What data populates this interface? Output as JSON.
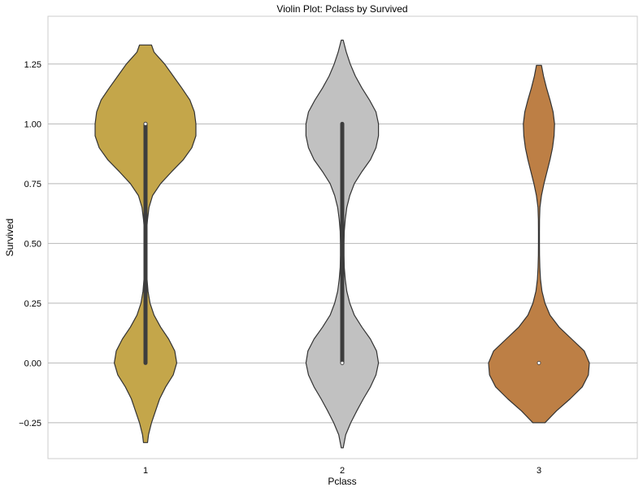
{
  "chart_data": {
    "type": "violin",
    "title": "Violin Plot: Pclass by Survived",
    "xlabel": "Pclass",
    "ylabel": "Survived",
    "categories": [
      "1",
      "2",
      "3"
    ],
    "ylim": [
      -0.4,
      1.45
    ],
    "yticks": [
      -0.25,
      0.0,
      0.25,
      0.5,
      0.75,
      1.0,
      1.25
    ],
    "ytick_labels": [
      "−0.25",
      "0.00",
      "0.25",
      "0.50",
      "0.75",
      "1.00",
      "1.25"
    ],
    "grid": true,
    "colors": [
      "#c4a64a",
      "#c1c1c1",
      "#bd7f45"
    ],
    "violins": [
      {
        "category": "1",
        "color": "#c4a64a",
        "profile": [
          [
            -0.333,
            0.04
          ],
          [
            -0.3,
            0.06
          ],
          [
            -0.25,
            0.12
          ],
          [
            -0.2,
            0.2
          ],
          [
            -0.15,
            0.28
          ],
          [
            -0.1,
            0.4
          ],
          [
            -0.05,
            0.55
          ],
          [
            0.0,
            0.62
          ],
          [
            0.05,
            0.58
          ],
          [
            0.1,
            0.46
          ],
          [
            0.15,
            0.3
          ],
          [
            0.2,
            0.17
          ],
          [
            0.25,
            0.09
          ],
          [
            0.3,
            0.05
          ],
          [
            0.35,
            0.03
          ],
          [
            0.4,
            0.02
          ],
          [
            0.45,
            0.015
          ],
          [
            0.5,
            0.015
          ],
          [
            0.55,
            0.02
          ],
          [
            0.6,
            0.04
          ],
          [
            0.65,
            0.07
          ],
          [
            0.7,
            0.14
          ],
          [
            0.75,
            0.3
          ],
          [
            0.8,
            0.52
          ],
          [
            0.85,
            0.75
          ],
          [
            0.9,
            0.92
          ],
          [
            0.95,
            1.0
          ],
          [
            1.0,
            1.0
          ],
          [
            1.05,
            0.97
          ],
          [
            1.1,
            0.88
          ],
          [
            1.15,
            0.72
          ],
          [
            1.2,
            0.55
          ],
          [
            1.25,
            0.38
          ],
          [
            1.3,
            0.17
          ],
          [
            1.33,
            0.12
          ]
        ],
        "box_range": [
          0.0,
          1.0
        ],
        "median": 1.0
      },
      {
        "category": "2",
        "color": "#c1c1c1",
        "profile": [
          [
            -0.355,
            0.02
          ],
          [
            -0.3,
            0.07
          ],
          [
            -0.25,
            0.17
          ],
          [
            -0.2,
            0.29
          ],
          [
            -0.15,
            0.42
          ],
          [
            -0.1,
            0.56
          ],
          [
            -0.05,
            0.67
          ],
          [
            0.0,
            0.72
          ],
          [
            0.05,
            0.68
          ],
          [
            0.1,
            0.56
          ],
          [
            0.15,
            0.39
          ],
          [
            0.2,
            0.24
          ],
          [
            0.25,
            0.15
          ],
          [
            0.3,
            0.09
          ],
          [
            0.35,
            0.06
          ],
          [
            0.4,
            0.04
          ],
          [
            0.45,
            0.035
          ],
          [
            0.5,
            0.035
          ],
          [
            0.55,
            0.04
          ],
          [
            0.6,
            0.06
          ],
          [
            0.65,
            0.09
          ],
          [
            0.7,
            0.15
          ],
          [
            0.75,
            0.24
          ],
          [
            0.8,
            0.39
          ],
          [
            0.85,
            0.56
          ],
          [
            0.9,
            0.67
          ],
          [
            0.95,
            0.72
          ],
          [
            1.0,
            0.72
          ],
          [
            1.05,
            0.67
          ],
          [
            1.1,
            0.54
          ],
          [
            1.15,
            0.39
          ],
          [
            1.2,
            0.26
          ],
          [
            1.25,
            0.16
          ],
          [
            1.3,
            0.08
          ],
          [
            1.35,
            0.02
          ]
        ],
        "box_range": [
          0.0,
          1.0
        ],
        "median": 0.0
      },
      {
        "category": "3",
        "color": "#bd7f45",
        "profile": [
          [
            -0.25,
            0.12
          ],
          [
            -0.2,
            0.35
          ],
          [
            -0.15,
            0.62
          ],
          [
            -0.1,
            0.86
          ],
          [
            -0.05,
            0.98
          ],
          [
            0.0,
            1.0
          ],
          [
            0.05,
            0.9
          ],
          [
            0.1,
            0.65
          ],
          [
            0.15,
            0.4
          ],
          [
            0.2,
            0.22
          ],
          [
            0.25,
            0.12
          ],
          [
            0.3,
            0.06
          ],
          [
            0.35,
            0.03
          ],
          [
            0.4,
            0.018
          ],
          [
            0.45,
            0.012
          ],
          [
            0.5,
            0.01
          ],
          [
            0.55,
            0.01
          ],
          [
            0.6,
            0.012
          ],
          [
            0.65,
            0.02
          ],
          [
            0.7,
            0.05
          ],
          [
            0.75,
            0.1
          ],
          [
            0.8,
            0.16
          ],
          [
            0.85,
            0.22
          ],
          [
            0.9,
            0.27
          ],
          [
            0.95,
            0.3
          ],
          [
            1.0,
            0.31
          ],
          [
            1.05,
            0.28
          ],
          [
            1.1,
            0.22
          ],
          [
            1.15,
            0.15
          ],
          [
            1.2,
            0.09
          ],
          [
            1.245,
            0.05
          ]
        ],
        "box_range": [
          0.0,
          0.0
        ],
        "median": 0.0
      }
    ]
  }
}
